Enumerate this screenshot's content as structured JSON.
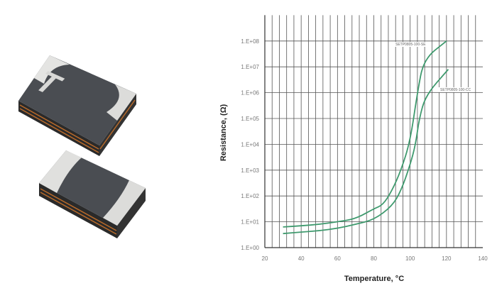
{
  "chart_data": {
    "type": "line",
    "title": "",
    "xlabel": "Temperature, °C",
    "ylabel": "Resistance, (Ω)",
    "xlim": [
      20,
      140
    ],
    "ylim": [
      1,
      1000000000
    ],
    "yscale": "log",
    "grid": true,
    "x_ticks": [
      "20",
      "40",
      "60",
      "80",
      "100",
      "120",
      "140"
    ],
    "y_ticks": [
      "1.E+00",
      "1.E+01",
      "1.E+02",
      "1.E+03",
      "1.E+04",
      "1.E+05",
      "1.E+06",
      "1.E+07",
      "1.E+08"
    ],
    "line_color": "#3f9a6e",
    "series": [
      {
        "name": "SETP0805-100-SE",
        "x": [
          30,
          40,
          50,
          60,
          70,
          80,
          85,
          90,
          95,
          100,
          104,
          107.5,
          120
        ],
        "y": [
          6.3,
          7,
          8,
          10,
          13,
          32,
          45,
          160,
          1000,
          13000,
          1000000,
          20000000,
          100000000
        ]
      },
      {
        "name": "SETP0805-100-CC",
        "x": [
          30,
          40,
          50,
          60,
          70,
          80,
          90,
          95,
          100,
          103,
          105,
          108.6,
          121
        ],
        "y": [
          3.5,
          4,
          4.5,
          5.6,
          8,
          12,
          40,
          160,
          1600,
          10000,
          100000,
          800000,
          8000000
        ]
      }
    ]
  },
  "photo": {
    "marking": "T"
  }
}
